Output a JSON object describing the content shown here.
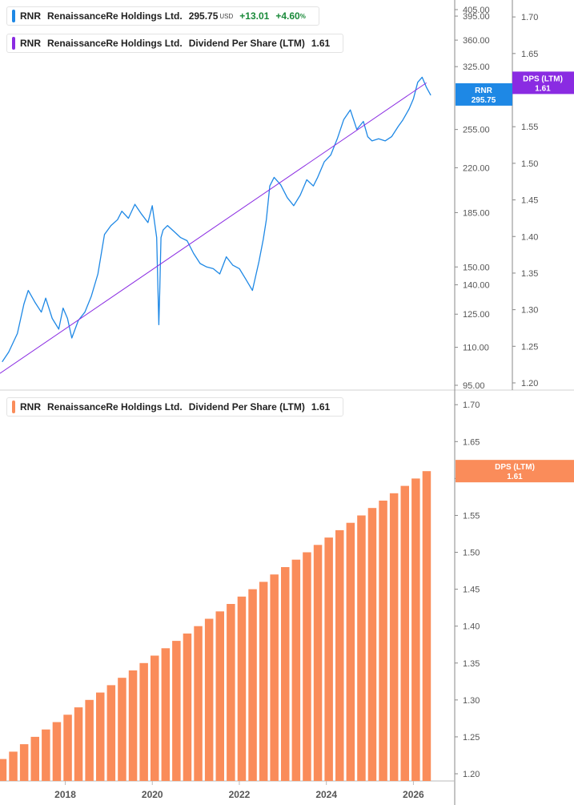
{
  "colors": {
    "price_line": "#1e88e5",
    "dps_line": "#8a2be2",
    "dps_bar": "#fa8c5a",
    "axis": "#888888",
    "tick_text": "#555555",
    "positive": "#1a8a3a"
  },
  "legend_top_1": {
    "ticker": "RNR",
    "company": "RenaissanceRe Holdings Ltd.",
    "price": "295.75",
    "currency": "USD",
    "change": "+13.01",
    "change_pct": "+4.60",
    "pct_sign": "%"
  },
  "legend_top_2": {
    "ticker": "RNR",
    "company": "RenaissanceRe Holdings Ltd.",
    "metric": "Dividend Per Share (LTM)",
    "value": "1.61"
  },
  "legend_bottom": {
    "ticker": "RNR",
    "company": "RenaissanceRe Holdings Ltd.",
    "metric": "Dividend Per Share (LTM)",
    "value": "1.61"
  },
  "chart_data": [
    {
      "type": "line",
      "scale": "log",
      "series": [
        {
          "name": "RNR",
          "axis": "left",
          "x": [
            2016.55,
            2016.7,
            2016.9,
            2017.05,
            2017.15,
            2017.3,
            2017.45,
            2017.55,
            2017.7,
            2017.85,
            2017.95,
            2018.05,
            2018.15,
            2018.3,
            2018.45,
            2018.6,
            2018.75,
            2018.9,
            2019.05,
            2019.2,
            2019.3,
            2019.45,
            2019.6,
            2019.75,
            2019.9,
            2020.0,
            2020.1,
            2020.15,
            2020.17,
            2020.2,
            2020.25,
            2020.35,
            2020.5,
            2020.65,
            2020.8,
            2020.95,
            2021.1,
            2021.25,
            2021.4,
            2021.55,
            2021.7,
            2021.85,
            2022.0,
            2022.15,
            2022.3,
            2022.45,
            2022.55,
            2022.62,
            2022.7,
            2022.8,
            2022.95,
            2023.1,
            2023.25,
            2023.4,
            2023.55,
            2023.7,
            2023.8,
            2023.95,
            2024.1,
            2024.25,
            2024.4,
            2024.55,
            2024.7,
            2024.85,
            2024.95,
            2025.05,
            2025.2,
            2025.35,
            2025.5,
            2025.65,
            2025.75,
            2025.9,
            2026.0,
            2026.1,
            2026.2,
            2026.3,
            2026.4
          ],
          "y": [
            104,
            108,
            116,
            130,
            137,
            131,
            126,
            133,
            123,
            118,
            128,
            123,
            114,
            122,
            126,
            134,
            146,
            170,
            176,
            180,
            186,
            181,
            191,
            184,
            178,
            190,
            168,
            120,
            136,
            168,
            173,
            176,
            172,
            168,
            166,
            158,
            152,
            150,
            149,
            146,
            156,
            151,
            149,
            143,
            137,
            153,
            167,
            180,
            205,
            212,
            206,
            196,
            190,
            198,
            210,
            205,
            212,
            225,
            231,
            246,
            265,
            275,
            255,
            263,
            248,
            244,
            246,
            244,
            248,
            258,
            264,
            276,
            287,
            306,
            312,
            300,
            291
          ],
          "endLabel": "RNR",
          "endValueLabel": "295.75"
        },
        {
          "name": "Dividend Per Share (LTM)",
          "axis": "right",
          "x": [
            2016.5,
            2026.3
          ],
          "y": [
            1.213,
            1.61
          ],
          "endLabel": "DPS (LTM)",
          "endValueLabel": "1.61"
        }
      ],
      "y_left": {
        "ticks": [
          95,
          110,
          125,
          140,
          150,
          185,
          220,
          255,
          325,
          360,
          395,
          405
        ],
        "tick_labels": [
          "95.00",
          "110.00",
          "125.00",
          "140.00",
          "150.00",
          "185.00",
          "220.00",
          "255.00",
          "325.00",
          "360.00",
          "395.00",
          "405.00"
        ],
        "range": [
          95,
          405
        ]
      },
      "y_right": {
        "ticks": [
          1.2,
          1.25,
          1.3,
          1.35,
          1.4,
          1.45,
          1.5,
          1.55,
          1.65,
          1.7
        ],
        "tick_labels": [
          "1.20",
          "1.25",
          "1.30",
          "1.35",
          "1.40",
          "1.45",
          "1.50",
          "1.55",
          "1.65",
          "1.70"
        ],
        "range": [
          1.2,
          1.71
        ]
      }
    },
    {
      "type": "bar",
      "series": [
        {
          "name": "Dividend Per Share (LTM)",
          "x": [
            2016.55,
            2016.8,
            2017.05,
            2017.3,
            2017.55,
            2017.8,
            2018.05,
            2018.3,
            2018.55,
            2018.8,
            2019.05,
            2019.3,
            2019.55,
            2019.8,
            2020.05,
            2020.3,
            2020.55,
            2020.8,
            2021.05,
            2021.3,
            2021.55,
            2021.8,
            2022.05,
            2022.3,
            2022.55,
            2022.8,
            2023.05,
            2023.3,
            2023.55,
            2023.8,
            2024.05,
            2024.3,
            2024.55,
            2024.8,
            2025.05,
            2025.3,
            2025.55,
            2025.8,
            2026.05,
            2026.3
          ],
          "values": [
            1.22,
            1.23,
            1.24,
            1.25,
            1.26,
            1.27,
            1.28,
            1.29,
            1.3,
            1.31,
            1.32,
            1.33,
            1.34,
            1.35,
            1.36,
            1.37,
            1.38,
            1.39,
            1.4,
            1.41,
            1.42,
            1.43,
            1.44,
            1.45,
            1.46,
            1.47,
            1.48,
            1.49,
            1.5,
            1.51,
            1.52,
            1.53,
            1.54,
            1.55,
            1.56,
            1.57,
            1.58,
            1.59,
            1.6,
            1.61
          ],
          "endLabel": "DPS (LTM)",
          "endValueLabel": "1.61"
        }
      ],
      "y_right": {
        "ticks": [
          1.2,
          1.25,
          1.3,
          1.35,
          1.4,
          1.45,
          1.5,
          1.55,
          1.6,
          1.65,
          1.7
        ],
        "tick_labels": [
          "1.20",
          "1.25",
          "1.30",
          "1.35",
          "1.40",
          "1.45",
          "1.50",
          "1.55",
          "1.60",
          "1.65",
          "1.70"
        ],
        "range": [
          1.2,
          1.71
        ]
      },
      "x_axis": {
        "ticks": [
          2018,
          2020,
          2022,
          2024,
          2026
        ],
        "tick_labels": [
          "2018",
          "2020",
          "2022",
          "2024",
          "2026"
        ],
        "range": [
          2016.5,
          2026.6
        ]
      }
    }
  ]
}
